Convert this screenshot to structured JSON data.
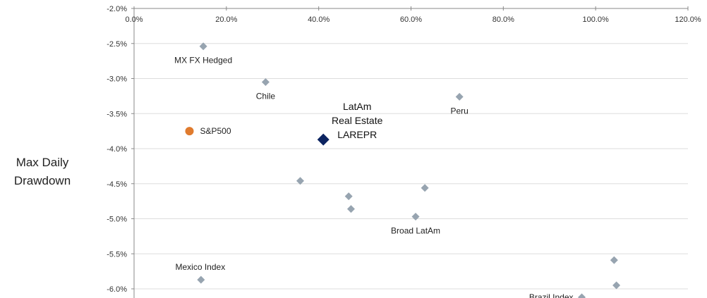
{
  "chart_data": {
    "type": "scatter",
    "title": "",
    "xlabel": "",
    "ylabel": "Max Daily Drawdown",
    "ylabel_lines": [
      "Max Daily",
      "Drawdown"
    ],
    "xlim": [
      0,
      120
    ],
    "ylim": [
      -6.1,
      -2.0
    ],
    "x_ticks": [
      0,
      20,
      40,
      60,
      80,
      100,
      120
    ],
    "x_tick_labels": [
      "0.0%",
      "20.0%",
      "40.0%",
      "60.0%",
      "80.0%",
      "100.0%",
      "120.0%"
    ],
    "y_ticks": [
      -2.0,
      -2.5,
      -3.0,
      -3.5,
      -4.0,
      -4.5,
      -5.0,
      -5.5,
      -6.0
    ],
    "y_tick_labels": [
      "-2.0%",
      "-2.5%",
      "-3.0%",
      "-3.5%",
      "-4.0%",
      "-4.5%",
      "-5.0%",
      "-5.5%",
      "-6.0%"
    ],
    "x_axis_position": "top",
    "grid": "horizontal",
    "colors": {
      "peer": "#97a4b0",
      "benchmark": "#e07b2e",
      "highlight": "#0c2461",
      "grid": "#dddddd",
      "axis": "#888888"
    },
    "points": [
      {
        "x": 15.0,
        "y": -2.54,
        "label": "MX FX Hedged",
        "label_pos": "below",
        "group": "peer"
      },
      {
        "x": 28.5,
        "y": -3.05,
        "label": "Chile",
        "label_pos": "below",
        "group": "peer"
      },
      {
        "x": 70.5,
        "y": -3.26,
        "label": "Peru",
        "label_pos": "below",
        "group": "peer"
      },
      {
        "x": 12.0,
        "y": -3.75,
        "label": "S&P500",
        "label_pos": "right",
        "group": "benchmark"
      },
      {
        "x": 41.0,
        "y": -3.87,
        "label": "",
        "label_pos": "none",
        "group": "highlight"
      },
      {
        "x": 36.0,
        "y": -4.46,
        "label": "",
        "label_pos": "none",
        "group": "peer"
      },
      {
        "x": 46.5,
        "y": -4.68,
        "label": "",
        "label_pos": "none",
        "group": "peer"
      },
      {
        "x": 47.0,
        "y": -4.86,
        "label": "",
        "label_pos": "none",
        "group": "peer"
      },
      {
        "x": 63.0,
        "y": -4.56,
        "label": "",
        "label_pos": "none",
        "group": "peer"
      },
      {
        "x": 61.0,
        "y": -4.97,
        "label": "Broad LatAm",
        "label_pos": "below",
        "group": "peer"
      },
      {
        "x": 14.5,
        "y": -5.87,
        "label": "Mexico Index",
        "label_pos": "above",
        "group": "peer"
      },
      {
        "x": 104.0,
        "y": -5.59,
        "label": "",
        "label_pos": "none",
        "group": "peer"
      },
      {
        "x": 104.5,
        "y": -5.95,
        "label": "",
        "label_pos": "none",
        "group": "peer"
      },
      {
        "x": 97.0,
        "y": -6.12,
        "label": "Brazil Index",
        "label_pos": "left",
        "group": "peer"
      }
    ],
    "highlight_label_lines": [
      "LatAm",
      "Real Estate",
      "LAREPR"
    ]
  }
}
